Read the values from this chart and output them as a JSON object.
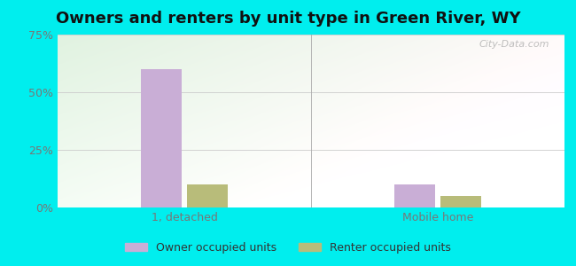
{
  "title": "Owners and renters by unit type in Green River, WY",
  "categories": [
    "1, detached",
    "Mobile home"
  ],
  "owner_values": [
    60.0,
    10.0
  ],
  "renter_values": [
    10.0,
    5.0
  ],
  "owner_color": "#c9aed6",
  "renter_color": "#b8bc7a",
  "ylim": [
    0,
    75
  ],
  "yticks": [
    0,
    25,
    50,
    75
  ],
  "yticklabels": [
    "0%",
    "25%",
    "50%",
    "75%"
  ],
  "bar_width": 0.32,
  "group_positions": [
    1.0,
    3.0
  ],
  "outer_bg": "#00eeee",
  "watermark": "City-Data.com",
  "legend_labels": [
    "Owner occupied units",
    "Renter occupied units"
  ],
  "title_fontsize": 13,
  "tick_fontsize": 9,
  "legend_fontsize": 9,
  "separator_x": 2.0,
  "xlim": [
    0.0,
    4.0
  ]
}
